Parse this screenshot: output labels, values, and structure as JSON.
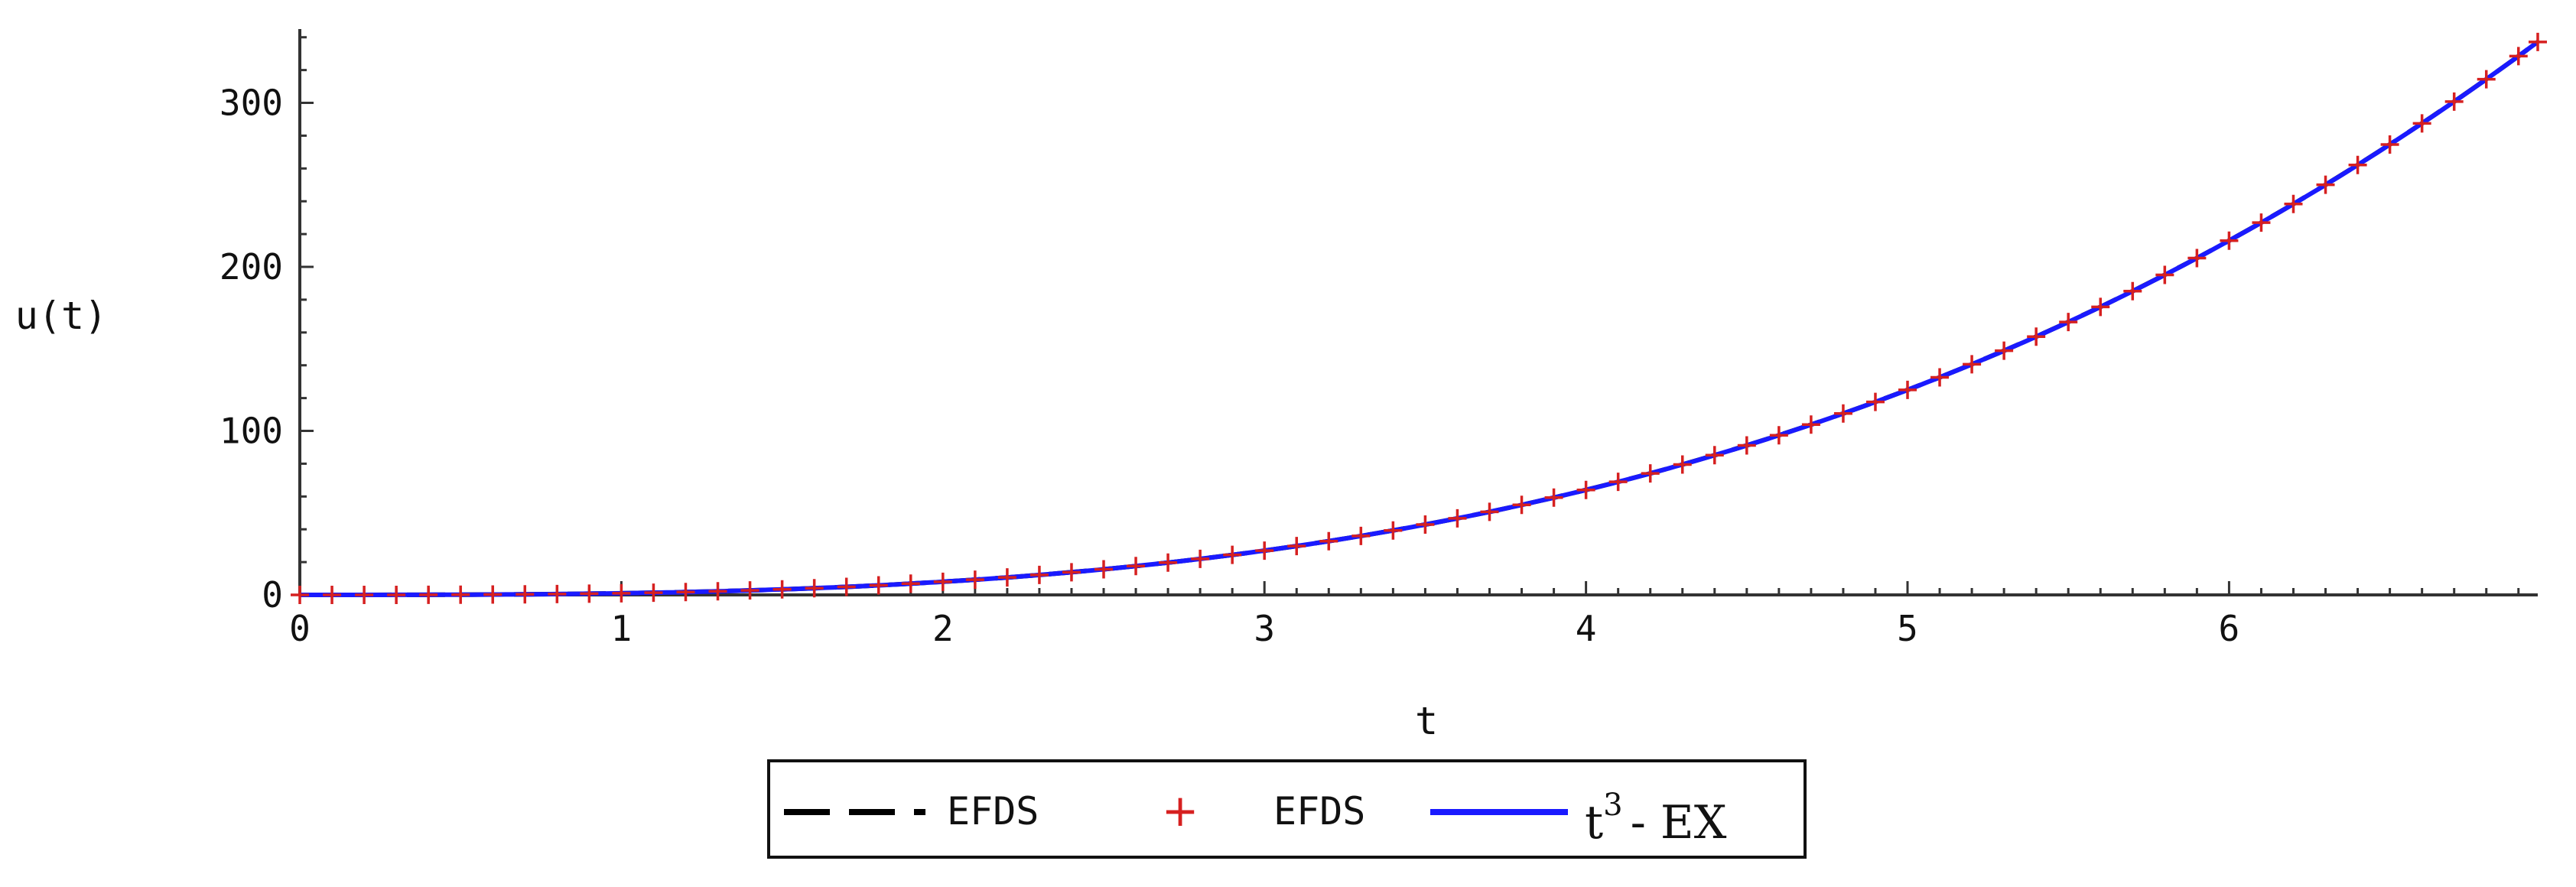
{
  "chart_data": {
    "type": "line",
    "xlabel": "t",
    "ylabel": "u(t)",
    "xlim": [
      0,
      6.96
    ],
    "ylim": [
      0,
      345
    ],
    "x_ticks": [
      0,
      1,
      2,
      3,
      4,
      5,
      6
    ],
    "y_ticks": [
      0,
      100,
      200,
      300
    ],
    "grid": false,
    "legend_placement": "bottom-center",
    "series": [
      {
        "name": "EFDS",
        "style": "dashed-line",
        "color": "#000000",
        "function": "t^3",
        "t_step": 0.1
      },
      {
        "name": "EFDS",
        "style": "cross-markers",
        "color": "#d62020",
        "function": "t^3",
        "t_step": 0.1
      },
      {
        "name": "t^3 - EX",
        "style": "solid-line",
        "color": "#1a1aff",
        "function": "t^3",
        "t_step": 0.02
      }
    ],
    "legend": {
      "entries": [
        {
          "label": "EFDS"
        },
        {
          "label": "EFDS"
        },
        {
          "label_base": "t",
          "label_sup": "3",
          "label_rest": "- EX"
        }
      ]
    }
  }
}
